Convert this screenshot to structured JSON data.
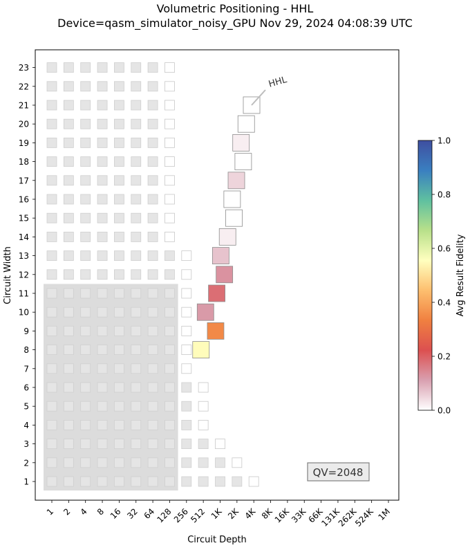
{
  "chart_data": {
    "type": "heatmap",
    "title": "Volumetric Positioning - HHL",
    "subtitle": "Device=qasm_simulator_noisy_GPU  Nov 29, 2024 04:08:39 UTC",
    "xlabel": "Circuit Depth",
    "ylabel": "Circuit Width",
    "x_ticks": [
      "1",
      "2",
      "4",
      "8",
      "16",
      "32",
      "64",
      "128",
      "256",
      "512",
      "1K",
      "2K",
      "4K",
      "8K",
      "16K",
      "33K",
      "66K",
      "131K",
      "262K",
      "524K",
      "1M"
    ],
    "y_ticks": [
      "1",
      "2",
      "3",
      "4",
      "5",
      "6",
      "7",
      "8",
      "9",
      "10",
      "11",
      "12",
      "13",
      "14",
      "15",
      "16",
      "17",
      "18",
      "19",
      "20",
      "21",
      "22",
      "23"
    ],
    "x_scale": "log2",
    "colorbar": {
      "label": "Avg Result Fidelity",
      "min": 0.0,
      "max": 1.0,
      "ticks": [
        "0.0",
        "0.2",
        "0.4",
        "0.6",
        "0.8",
        "1.0"
      ]
    },
    "qv_label": "QV=2048",
    "quantum_volume": 2048,
    "benchmark_label": "HHL",
    "qv_region": {
      "max_width": 11,
      "max_depth_label": "128"
    },
    "volumetric_background": {
      "description": "QV-style filled/outlined squares per width",
      "rows": [
        {
          "width": 1,
          "filled_depth_max": "2K",
          "outline_depth": "4K"
        },
        {
          "width": 2,
          "filled_depth_max": "1K",
          "outline_depth": "2K"
        },
        {
          "width": 3,
          "filled_depth_max": "512",
          "outline_depth": "1K"
        },
        {
          "width": 4,
          "filled_depth_max": "256",
          "outline_depth": "512"
        },
        {
          "width": 5,
          "filled_depth_max": "256",
          "outline_depth": "512"
        },
        {
          "width": 6,
          "filled_depth_max": "256",
          "outline_depth": "512"
        },
        {
          "width": 7,
          "filled_depth_max": "128",
          "outline_depth": "256"
        },
        {
          "width": 8,
          "filled_depth_max": "128",
          "outline_depth": "256"
        },
        {
          "width": 9,
          "filled_depth_max": "128",
          "outline_depth": "256"
        },
        {
          "width": 10,
          "filled_depth_max": "128",
          "outline_depth": "256"
        },
        {
          "width": 11,
          "filled_depth_max": "128",
          "outline_depth": "256"
        },
        {
          "width": 12,
          "filled_depth_max": "128",
          "outline_depth": "256"
        },
        {
          "width": 13,
          "filled_depth_max": "128",
          "outline_depth": "256"
        },
        {
          "width": 14,
          "filled_depth_max": "64",
          "outline_depth": "128"
        },
        {
          "width": 15,
          "filled_depth_max": "64",
          "outline_depth": "128"
        },
        {
          "width": 16,
          "filled_depth_max": "64",
          "outline_depth": "128"
        },
        {
          "width": 17,
          "filled_depth_max": "64",
          "outline_depth": "128"
        },
        {
          "width": 18,
          "filled_depth_max": "64",
          "outline_depth": "128"
        },
        {
          "width": 19,
          "filled_depth_max": "64",
          "outline_depth": "128"
        },
        {
          "width": 20,
          "filled_depth_max": "64",
          "outline_depth": "128"
        },
        {
          "width": 21,
          "filled_depth_max": "64",
          "outline_depth": "128"
        },
        {
          "width": 22,
          "filled_depth_max": "64",
          "outline_depth": "128"
        },
        {
          "width": 23,
          "filled_depth_max": "64",
          "outline_depth": "128"
        }
      ]
    },
    "points": [
      {
        "width": 8,
        "depth": 465,
        "fidelity": 0.55
      },
      {
        "width": 9,
        "depth": 850,
        "fidelity": 0.35
      },
      {
        "width": 10,
        "depth": 560,
        "fidelity": 0.12
      },
      {
        "width": 11,
        "depth": 890,
        "fidelity": 0.18
      },
      {
        "width": 12,
        "depth": 1220,
        "fidelity": 0.13
      },
      {
        "width": 13,
        "depth": 1050,
        "fidelity": 0.07
      },
      {
        "width": 14,
        "depth": 1390,
        "fidelity": 0.02
      },
      {
        "width": 15,
        "depth": 1810,
        "fidelity": 0.0
      },
      {
        "width": 16,
        "depth": 1680,
        "fidelity": 0.0
      },
      {
        "width": 17,
        "depth": 2000,
        "fidelity": 0.05
      },
      {
        "width": 18,
        "depth": 2650,
        "fidelity": 0.0
      },
      {
        "width": 19,
        "depth": 2420,
        "fidelity": 0.02
      },
      {
        "width": 20,
        "depth": 3000,
        "fidelity": 0.0
      },
      {
        "width": 21,
        "depth": 3740,
        "fidelity": 0.0
      }
    ],
    "colormap_stops": [
      "#ffffff",
      "#d9a0b0",
      "#dc5050",
      "#f08040",
      "#fdbf6f",
      "#ffffbf",
      "#b8e08a",
      "#5fc0a0",
      "#3a7fc0",
      "#3f4fa0"
    ]
  }
}
